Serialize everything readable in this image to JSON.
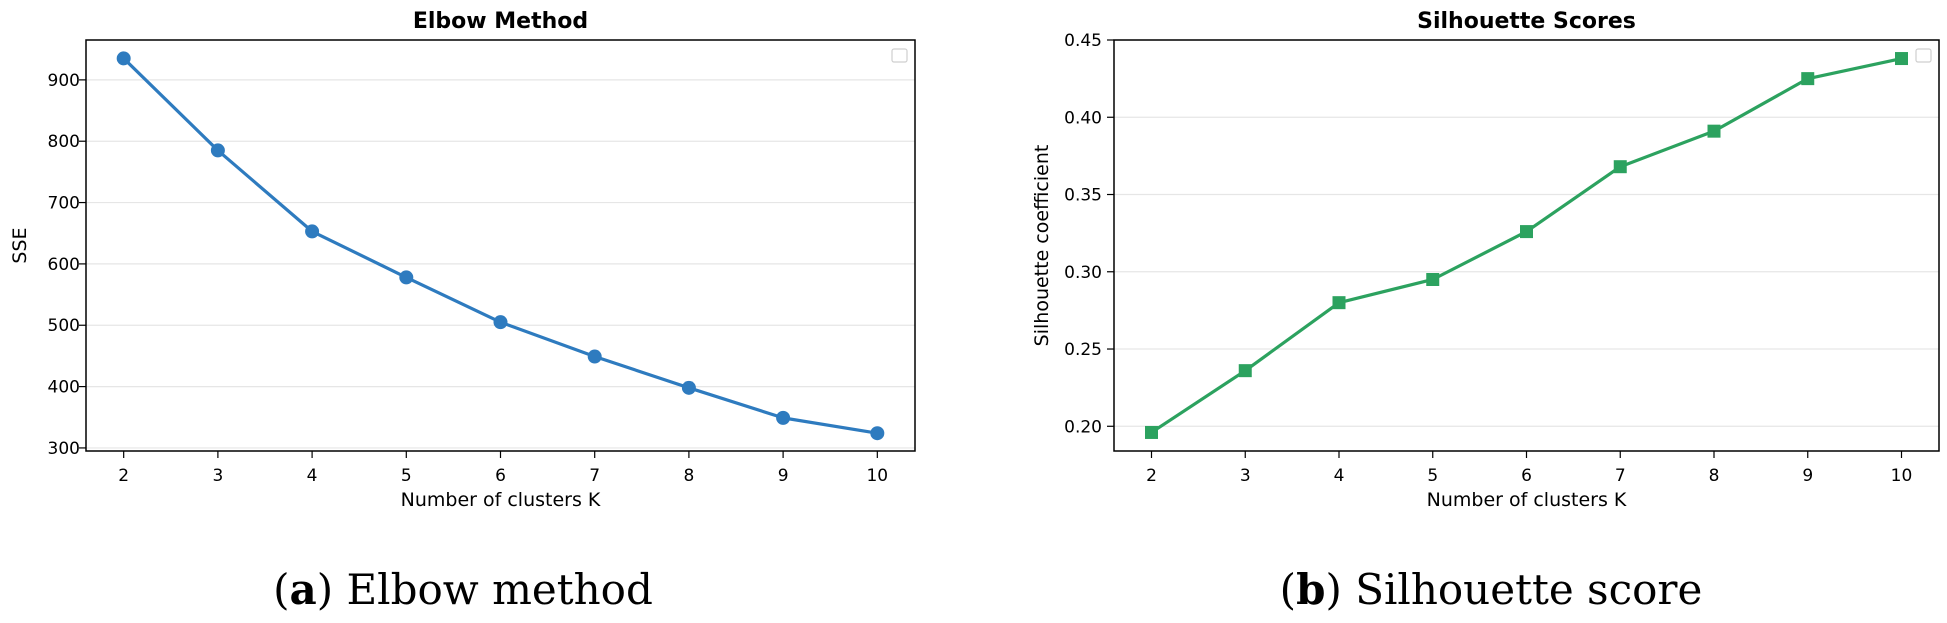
{
  "chart_data": [
    {
      "type": "line",
      "title": "Elbow Method",
      "xlabel": "Number of clusters K",
      "ylabel": "SSE",
      "x": [
        2,
        3,
        4,
        5,
        6,
        7,
        8,
        9,
        10
      ],
      "series": [
        {
          "values": [
            935,
            785,
            653,
            578,
            505,
            449,
            398,
            349,
            324
          ],
          "color": "#2e7bbf",
          "marker": "circle"
        }
      ],
      "xticks": [
        "2",
        "3",
        "4",
        "5",
        "6",
        "7",
        "8",
        "9",
        "10"
      ],
      "yticks": [
        "300",
        "400",
        "500",
        "600",
        "700",
        "800",
        "900"
      ],
      "xlim": [
        1.6,
        10.4
      ],
      "ylim": [
        295,
        965
      ],
      "grid": "horizontal",
      "legend": "top-right (empty)",
      "caption": {
        "letter": "a",
        "text": "Elbow method"
      }
    },
    {
      "type": "line",
      "title": "Silhouette Scores",
      "xlabel": "Number of clusters K",
      "ylabel": "Silhouette coefficient",
      "x": [
        2,
        3,
        4,
        5,
        6,
        7,
        8,
        9,
        10
      ],
      "series": [
        {
          "values": [
            0.196,
            0.236,
            0.28,
            0.295,
            0.326,
            0.368,
            0.391,
            0.425,
            0.438
          ],
          "color": "#2ca25f",
          "marker": "square"
        }
      ],
      "xticks": [
        "2",
        "3",
        "4",
        "5",
        "6",
        "7",
        "8",
        "9",
        "10"
      ],
      "yticks": [
        "0.20",
        "0.25",
        "0.30",
        "0.35",
        "0.40",
        "0.45"
      ],
      "xlim": [
        1.6,
        10.4
      ],
      "ylim": [
        0.184,
        0.45
      ],
      "grid": "horizontal",
      "legend": "top-right (empty)",
      "caption": {
        "letter": "b",
        "text": "Silhouette score"
      }
    }
  ]
}
